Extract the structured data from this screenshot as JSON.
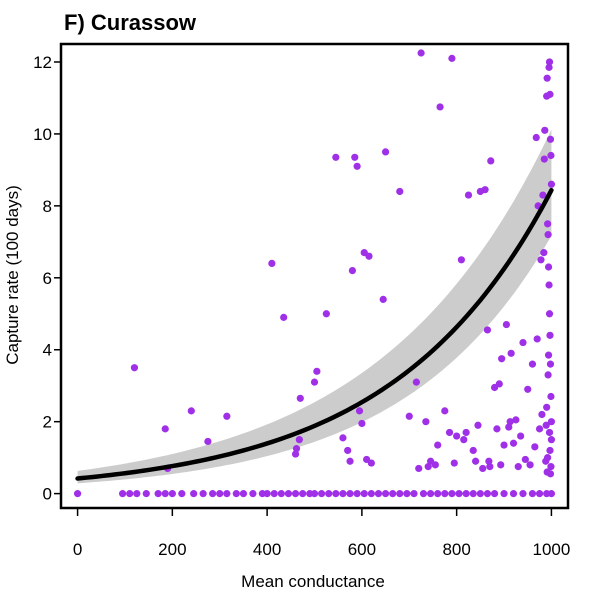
{
  "chart_data": {
    "type": "scatter",
    "title": "F) Curassow",
    "xlabel": "Mean conductance",
    "ylabel": "Capture rate (100 days)",
    "xlim": [
      -35,
      1035
    ],
    "ylim": [
      -0.4,
      12.5
    ],
    "xticks": [
      0,
      200,
      400,
      600,
      800,
      1000
    ],
    "yticks": [
      0,
      2,
      4,
      6,
      8,
      10,
      12
    ],
    "grid": false,
    "legend": "none",
    "colors": {
      "points": "#a030e8",
      "fit": "#000000",
      "band": "#cccccc",
      "axis": "#000000"
    },
    "series": [
      {
        "type": "scatter",
        "points": [
          [
            0,
            0.0
          ],
          [
            95,
            0.0
          ],
          [
            110,
            0.0
          ],
          [
            125,
            0.0
          ],
          [
            145,
            0.0
          ],
          [
            170,
            0.0
          ],
          [
            185,
            0.0
          ],
          [
            200,
            0.0
          ],
          [
            220,
            0.0
          ],
          [
            245,
            0.0
          ],
          [
            265,
            0.0
          ],
          [
            285,
            0.0
          ],
          [
            300,
            0.0
          ],
          [
            315,
            0.0
          ],
          [
            335,
            0.0
          ],
          [
            350,
            0.0
          ],
          [
            370,
            0.0
          ],
          [
            390,
            0.0
          ],
          [
            400,
            0.0
          ],
          [
            415,
            0.0
          ],
          [
            430,
            0.0
          ],
          [
            445,
            0.0
          ],
          [
            460,
            0.0
          ],
          [
            475,
            0.0
          ],
          [
            490,
            0.0
          ],
          [
            500,
            0.0
          ],
          [
            515,
            0.0
          ],
          [
            530,
            0.0
          ],
          [
            545,
            0.0
          ],
          [
            560,
            0.0
          ],
          [
            575,
            0.0
          ],
          [
            590,
            0.0
          ],
          [
            605,
            0.0
          ],
          [
            620,
            0.0
          ],
          [
            635,
            0.0
          ],
          [
            650,
            0.0
          ],
          [
            665,
            0.0
          ],
          [
            680,
            0.0
          ],
          [
            695,
            0.0
          ],
          [
            710,
            0.0
          ],
          [
            730,
            0.0
          ],
          [
            745,
            0.0
          ],
          [
            760,
            0.0
          ],
          [
            775,
            0.0
          ],
          [
            790,
            0.0
          ],
          [
            805,
            0.0
          ],
          [
            820,
            0.0
          ],
          [
            835,
            0.0
          ],
          [
            850,
            0.0
          ],
          [
            865,
            0.0
          ],
          [
            880,
            0.0
          ],
          [
            900,
            0.0
          ],
          [
            920,
            0.0
          ],
          [
            940,
            0.0
          ],
          [
            960,
            0.0
          ],
          [
            975,
            0.0
          ],
          [
            990,
            0.0
          ],
          [
            1000,
            0.0
          ],
          [
            120,
            3.5
          ],
          [
            185,
            1.8
          ],
          [
            190,
            0.7
          ],
          [
            240,
            2.3
          ],
          [
            275,
            1.45
          ],
          [
            315,
            2.15
          ],
          [
            410,
            6.4
          ],
          [
            435,
            4.9
          ],
          [
            460,
            1.1
          ],
          [
            462,
            1.25
          ],
          [
            468,
            1.5
          ],
          [
            470,
            2.65
          ],
          [
            500,
            3.1
          ],
          [
            505,
            3.4
          ],
          [
            525,
            5.0
          ],
          [
            545,
            9.35
          ],
          [
            560,
            1.55
          ],
          [
            570,
            1.2
          ],
          [
            575,
            0.9
          ],
          [
            580,
            6.2
          ],
          [
            585,
            9.35
          ],
          [
            590,
            9.1
          ],
          [
            595,
            2.3
          ],
          [
            600,
            1.95
          ],
          [
            605,
            6.7
          ],
          [
            610,
            0.95
          ],
          [
            615,
            6.6
          ],
          [
            620,
            0.85
          ],
          [
            645,
            5.4
          ],
          [
            650,
            9.5
          ],
          [
            680,
            8.4
          ],
          [
            700,
            2.15
          ],
          [
            715,
            3.1
          ],
          [
            720,
            0.7
          ],
          [
            725,
            12.25
          ],
          [
            735,
            2.0
          ],
          [
            740,
            0.75
          ],
          [
            745,
            0.9
          ],
          [
            755,
            0.8
          ],
          [
            760,
            1.35
          ],
          [
            765,
            10.75
          ],
          [
            775,
            2.3
          ],
          [
            785,
            1.7
          ],
          [
            790,
            12.1
          ],
          [
            795,
            0.85
          ],
          [
            800,
            1.6
          ],
          [
            810,
            6.5
          ],
          [
            815,
            1.5
          ],
          [
            820,
            1.7
          ],
          [
            825,
            8.3
          ],
          [
            835,
            1.2
          ],
          [
            840,
            0.9
          ],
          [
            845,
            1.9
          ],
          [
            850,
            8.4
          ],
          [
            855,
            0.7
          ],
          [
            860,
            8.45
          ],
          [
            865,
            4.55
          ],
          [
            868,
            0.9
          ],
          [
            870,
            0.75
          ],
          [
            872,
            9.25
          ],
          [
            880,
            2.95
          ],
          [
            885,
            1.8
          ],
          [
            890,
            3.05
          ],
          [
            893,
            0.8
          ],
          [
            895,
            3.75
          ],
          [
            900,
            1.35
          ],
          [
            905,
            4.7
          ],
          [
            910,
            1.85
          ],
          [
            913,
            2.0
          ],
          [
            915,
            3.9
          ],
          [
            920,
            1.4
          ],
          [
            925,
            2.05
          ],
          [
            930,
            0.75
          ],
          [
            935,
            1.6
          ],
          [
            940,
            4.2
          ],
          [
            945,
            0.95
          ],
          [
            950,
            2.9
          ],
          [
            955,
            0.8
          ],
          [
            960,
            3.6
          ],
          [
            965,
            1.3
          ],
          [
            968,
            9.9
          ],
          [
            970,
            4.3
          ],
          [
            972,
            8.0
          ],
          [
            975,
            1.8
          ],
          [
            978,
            6.5
          ],
          [
            980,
            2.2
          ],
          [
            982,
            8.3
          ],
          [
            984,
            6.7
          ],
          [
            985,
            9.3
          ],
          [
            986,
            10.1
          ],
          [
            988,
            0.9
          ],
          [
            990,
            11.05
          ],
          [
            991,
            11.55
          ],
          [
            992,
            1.0
          ],
          [
            993,
            3.3
          ],
          [
            994,
            3.85
          ],
          [
            995,
            11.85
          ],
          [
            996,
            12.0
          ],
          [
            997,
            11.1
          ],
          [
            998,
            9.85
          ],
          [
            999,
            9.4
          ],
          [
            1000,
            1.5
          ],
          [
            992,
            7.5
          ],
          [
            993,
            7.2
          ],
          [
            994,
            6.3
          ],
          [
            995,
            5.8
          ],
          [
            996,
            5.0
          ],
          [
            997,
            4.4
          ],
          [
            998,
            3.6
          ],
          [
            999,
            2.7
          ],
          [
            1000,
            2.0
          ],
          [
            996,
            1.7
          ],
          [
            997,
            1.2
          ],
          [
            998,
            0.55
          ],
          [
            999,
            0.75
          ],
          [
            1000,
            8.6
          ],
          [
            990,
            2.4
          ],
          [
            989,
            1.9
          ],
          [
            991,
            0.6
          ]
        ]
      },
      {
        "type": "line",
        "model": "exponential",
        "intercept": 0.42,
        "rate": 0.003,
        "x_range": [
          0,
          1000
        ]
      },
      {
        "type": "confidence_band",
        "lower_factor": [
          0.68,
          0.85
        ],
        "upper_factor": [
          1.5,
          1.2
        ]
      }
    ]
  }
}
